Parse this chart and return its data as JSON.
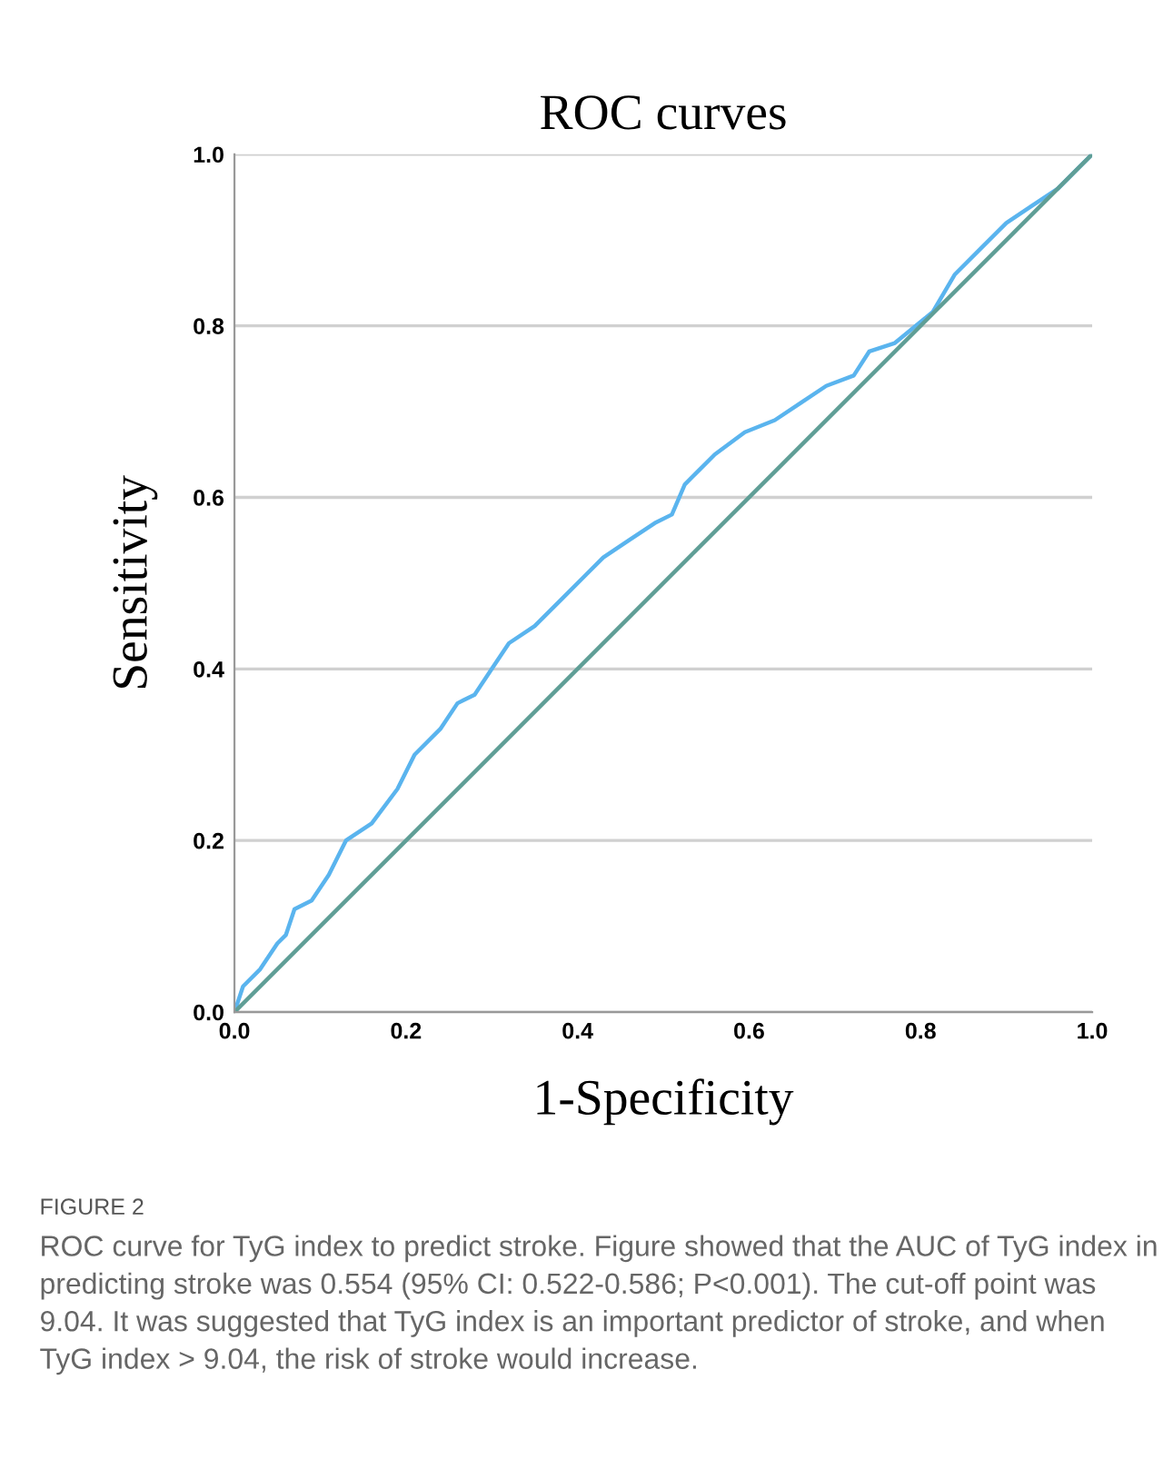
{
  "chart_data": {
    "type": "line",
    "title": "ROC curves",
    "xlabel": "1-Specificity",
    "ylabel": "Sensitivity",
    "series": [
      {
        "color": "#5ab4ee",
        "x": [
          0,
          0.01,
          0.03,
          0.05,
          0.06,
          0.07,
          0.09,
          0.11,
          0.13,
          0.16,
          0.19,
          0.21,
          0.24,
          0.26,
          0.28,
          0.3,
          0.32,
          0.35,
          0.38,
          0.41,
          0.43,
          0.46,
          0.49,
          0.51,
          0.525,
          0.54,
          0.56,
          0.595,
          0.63,
          0.66,
          0.69,
          0.722,
          0.74,
          0.77,
          0.814,
          0.84,
          0.87,
          0.9,
          0.93,
          0.96,
          0.98,
          1
        ],
        "values": [
          0,
          0.03,
          0.05,
          0.08,
          0.09,
          0.12,
          0.13,
          0.16,
          0.2,
          0.22,
          0.26,
          0.3,
          0.33,
          0.36,
          0.37,
          0.4,
          0.43,
          0.45,
          0.48,
          0.51,
          0.53,
          0.55,
          0.57,
          0.58,
          0.615,
          0.63,
          0.65,
          0.676,
          0.69,
          0.71,
          0.73,
          0.742,
          0.77,
          0.78,
          0.816,
          0.86,
          0.89,
          0.92,
          0.94,
          0.96,
          0.98,
          1
        ]
      },
      {
        "color": "#5f9e96",
        "x": [
          0,
          1
        ],
        "values": [
          0,
          1
        ]
      }
    ],
    "xlim": [
      0,
      1
    ],
    "ylim": [
      0,
      1
    ],
    "xticks": [
      {
        "value": 0,
        "label": "0.0"
      },
      0.2,
      0.4,
      0.6,
      0.8,
      {
        "value": 1,
        "label": "1.0"
      }
    ],
    "yticks": [
      {
        "value": 0,
        "label": "0.0"
      },
      0.2,
      0.4,
      0.6,
      0.8,
      {
        "value": 1,
        "label": "1.0"
      }
    ],
    "grid": "y",
    "legend": false,
    "marker": "none",
    "line_style": "solid",
    "annotations": [
      "FIGURE 2",
      "ROC curve for TyG index to predict stroke. Figure showed that the AUC of TyG index in predicting stroke was 0.554 (95% CI: 0.522-0.586; P<0.001). The cut-off point was 9.04. It was suggested that TyG index is an important predictor of stroke, and when TyG index > 9.04, the risk of stroke would increase."
    ]
  }
}
